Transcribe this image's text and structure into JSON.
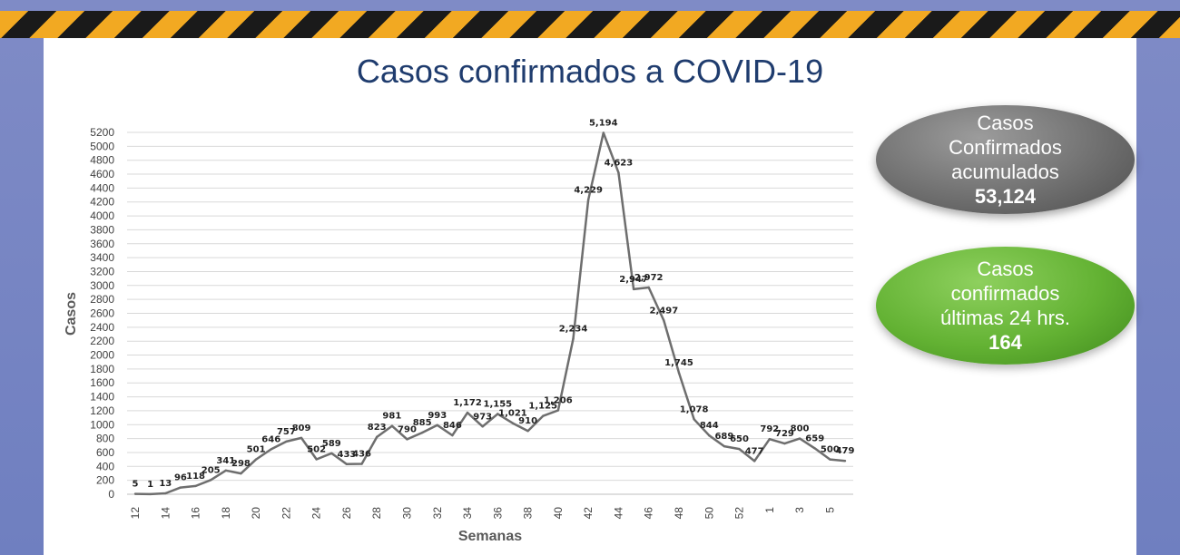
{
  "title": "Casos confirmados a COVID-19",
  "colors": {
    "line": "#6e6e6e",
    "title": "#1f3c6e",
    "grid": "#d9d9d9"
  },
  "cards": {
    "accumulated": {
      "line1": "Casos",
      "line2": "Confirmados",
      "line3": "acumulados",
      "value": "53,124"
    },
    "last24": {
      "line1": "Casos",
      "line2": "confirmados",
      "line3": "últimas 24 hrs.",
      "value": "164"
    }
  },
  "chart_data": {
    "type": "line",
    "xlabel": "Semanas",
    "ylabel": "Casos",
    "ylim": [
      0,
      5200
    ],
    "ytick_step": 200,
    "grid": true,
    "x": [
      "12",
      "13",
      "14",
      "15",
      "16",
      "17",
      "18",
      "19",
      "20",
      "21",
      "22",
      "23",
      "24",
      "25",
      "26",
      "27",
      "28",
      "29",
      "30",
      "31",
      "32",
      "33",
      "34",
      "35",
      "36",
      "37",
      "38",
      "39",
      "40",
      "41",
      "42",
      "43",
      "44",
      "45",
      "46",
      "47",
      "48",
      "49",
      "50",
      "51",
      "52",
      "53",
      "1",
      "2",
      "3",
      "4",
      "5",
      "6"
    ],
    "xtick_labels": [
      "12",
      "14",
      "16",
      "18",
      "20",
      "22",
      "24",
      "26",
      "28",
      "30",
      "32",
      "34",
      "36",
      "38",
      "40",
      "42",
      "44",
      "46",
      "48",
      "50",
      "52",
      "1",
      "3",
      "5"
    ],
    "values": [
      5,
      1,
      13,
      96,
      118,
      205,
      341,
      298,
      501,
      646,
      757,
      809,
      502,
      589,
      433,
      436,
      823,
      981,
      790,
      885,
      993,
      846,
      1172,
      973,
      1155,
      1021,
      910,
      1125,
      1206,
      2234,
      4229,
      5194,
      4623,
      2947,
      2972,
      2497,
      1745,
      1078,
      844,
      689,
      650,
      477,
      792,
      729,
      800,
      659,
      500,
      479
    ],
    "value_labels": [
      "5",
      "1",
      "13",
      "96",
      "118",
      "205",
      "341",
      "298",
      "501",
      "646",
      "757",
      "809",
      "502",
      "589",
      "433",
      "436",
      "823",
      "981",
      "790",
      "885",
      "993",
      "846",
      "1,172",
      "973",
      "1,155",
      "1,021",
      "910",
      "1,125",
      "1,206",
      "2,234",
      "4,229",
      "5,194",
      "4,623",
      "2,947",
      "2,972",
      "2,497",
      "1,745",
      "1,078",
      "844",
      "689",
      "650",
      "477",
      "792",
      "729",
      "800",
      "659",
      "500",
      "479"
    ]
  }
}
